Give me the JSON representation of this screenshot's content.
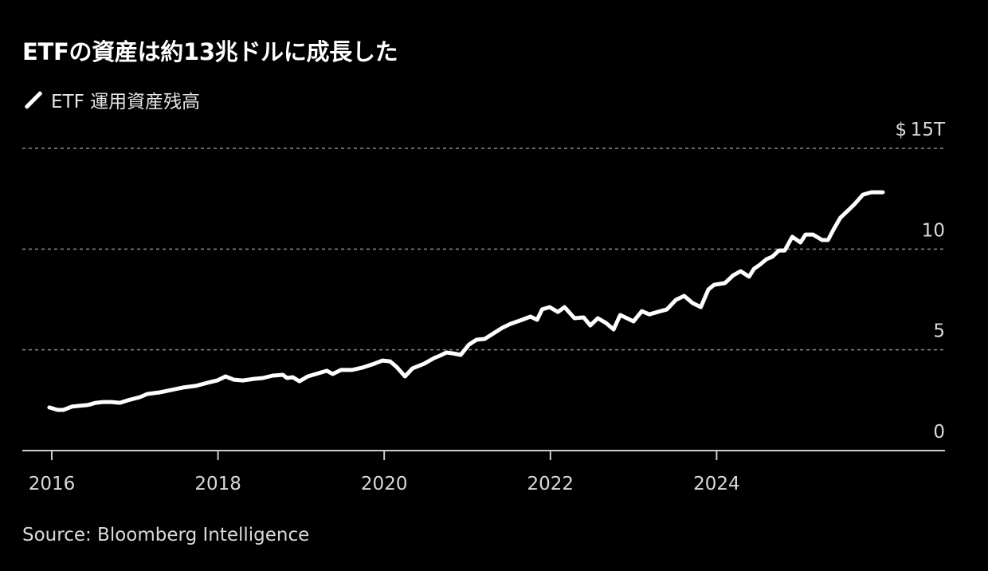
{
  "title": "ETFの資産は約13兆ドルに成長した",
  "legend": {
    "label": "ETF 運用資産残高",
    "color": "#ffffff"
  },
  "source": "Source: Bloomberg Intelligence",
  "y_axis": {
    "ticks": [
      {
        "value": 0,
        "label": "0"
      },
      {
        "value": 5,
        "label": "5"
      },
      {
        "value": 10,
        "label": "10"
      },
      {
        "value": 15,
        "label": "$ 15T"
      }
    ]
  },
  "x_axis": {
    "ticks": [
      {
        "value": 2016,
        "label": "2016"
      },
      {
        "value": 2018,
        "label": "2018"
      },
      {
        "value": 2020,
        "label": "2020"
      },
      {
        "value": 2022,
        "label": "2022"
      },
      {
        "value": 2024,
        "label": "2024"
      }
    ]
  },
  "colors": {
    "background": "#000000",
    "line": "#ffffff",
    "grid": "#8a8a8a",
    "axis": "#cccccc",
    "text": "#d9d9d9"
  },
  "chart_data": {
    "type": "line",
    "title": "ETFの資産は約13兆ドルに成長した",
    "xlabel": "",
    "ylabel": "ETF 運用資産残高 ($T)",
    "ylim": [
      0,
      15
    ],
    "xlim": [
      2015.65,
      2026.4
    ],
    "grid": true,
    "legend_position": "top-left",
    "series": [
      {
        "name": "ETF 運用資産残高",
        "x": [
          2015.97,
          2016.07,
          2016.14,
          2016.24,
          2016.33,
          2016.43,
          2016.53,
          2016.62,
          2016.72,
          2016.82,
          2016.91,
          2017.06,
          2017.15,
          2017.3,
          2017.44,
          2017.58,
          2017.73,
          2017.87,
          2017.99,
          2018.09,
          2018.19,
          2018.3,
          2018.43,
          2018.54,
          2018.66,
          2018.78,
          2018.83,
          2018.9,
          2018.98,
          2019.08,
          2019.21,
          2019.31,
          2019.38,
          2019.48,
          2019.61,
          2019.74,
          2019.88,
          2019.98,
          2020.07,
          2020.15,
          2020.25,
          2020.34,
          2020.48,
          2020.6,
          2020.67,
          2020.75,
          2020.82,
          2020.92,
          2021.02,
          2021.11,
          2021.21,
          2021.3,
          2021.42,
          2021.52,
          2021.66,
          2021.76,
          2021.84,
          2021.9,
          2021.99,
          2022.09,
          2022.17,
          2022.29,
          2022.4,
          2022.48,
          2022.57,
          2022.67,
          2022.76,
          2022.84,
          2023.0,
          2023.1,
          2023.19,
          2023.29,
          2023.4,
          2023.51,
          2023.61,
          2023.71,
          2023.81,
          2023.9,
          2023.97,
          2024.1,
          2024.2,
          2024.29,
          2024.39,
          2024.45,
          2024.52,
          2024.6,
          2024.67,
          2024.75,
          2024.82,
          2024.91,
          2025.01,
          2025.07,
          2025.16,
          2025.27,
          2025.34,
          2025.41,
          2025.49,
          2025.58,
          2025.66,
          2025.76,
          2025.86,
          2025.9,
          2026.0
        ],
        "values": [
          2.14,
          2.02,
          2.02,
          2.18,
          2.22,
          2.26,
          2.37,
          2.41,
          2.41,
          2.37,
          2.49,
          2.65,
          2.81,
          2.89,
          3.01,
          3.13,
          3.21,
          3.36,
          3.48,
          3.68,
          3.52,
          3.48,
          3.56,
          3.6,
          3.72,
          3.76,
          3.6,
          3.64,
          3.44,
          3.68,
          3.84,
          3.96,
          3.8,
          4.0,
          4.0,
          4.12,
          4.31,
          4.47,
          4.43,
          4.15,
          3.68,
          4.08,
          4.31,
          4.59,
          4.71,
          4.87,
          4.83,
          4.75,
          5.26,
          5.5,
          5.54,
          5.78,
          6.09,
          6.29,
          6.49,
          6.65,
          6.49,
          7.01,
          7.12,
          6.88,
          7.12,
          6.57,
          6.61,
          6.21,
          6.57,
          6.33,
          6.01,
          6.73,
          6.41,
          6.92,
          6.76,
          6.88,
          7.0,
          7.48,
          7.68,
          7.32,
          7.12,
          7.99,
          8.23,
          8.31,
          8.7,
          8.9,
          8.63,
          9.02,
          9.22,
          9.5,
          9.62,
          9.93,
          9.93,
          10.61,
          10.33,
          10.72,
          10.72,
          10.45,
          10.45,
          11.0,
          11.56,
          11.91,
          12.23,
          12.7,
          12.82,
          12.82,
          12.82
        ]
      }
    ]
  }
}
